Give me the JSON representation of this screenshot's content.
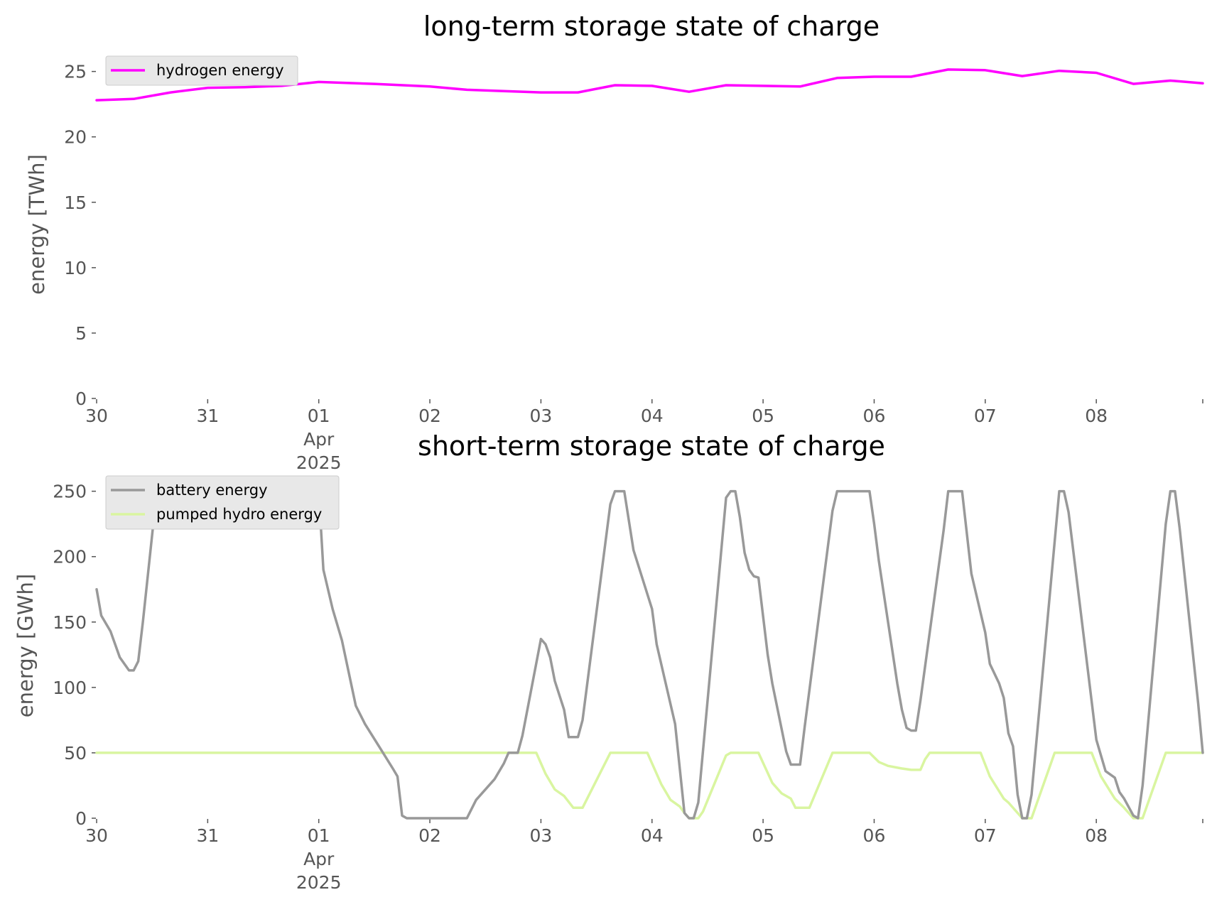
{
  "chart_data": [
    {
      "type": "line",
      "title": "long-term storage state of charge",
      "xlabel": "",
      "ylabel": "energy [TWh]",
      "ylim": [
        0,
        26.5
      ],
      "xlim": [
        "2025-03-30T00:00",
        "2025-04-08T23:00"
      ],
      "yticks": [
        0,
        5,
        10,
        15,
        20,
        25
      ],
      "xticks": [
        {
          "date": "2025-03-30",
          "label": "30",
          "sublabels": []
        },
        {
          "date": "2025-03-31",
          "label": "31",
          "sublabels": []
        },
        {
          "date": "2025-04-01",
          "label": "01",
          "sublabels": [
            "Apr",
            "2025"
          ]
        },
        {
          "date": "2025-04-02",
          "label": "02",
          "sublabels": []
        },
        {
          "date": "2025-04-03",
          "label": "03",
          "sublabels": []
        },
        {
          "date": "2025-04-04",
          "label": "04",
          "sublabels": []
        },
        {
          "date": "2025-04-05",
          "label": "05",
          "sublabels": []
        },
        {
          "date": "2025-04-06",
          "label": "06",
          "sublabels": []
        },
        {
          "date": "2025-04-07",
          "label": "07",
          "sublabels": []
        },
        {
          "date": "2025-04-08",
          "label": "08",
          "sublabels": []
        }
      ],
      "grid": false,
      "legend_position": "top-left",
      "series": [
        {
          "name": "hydrogen energy",
          "color": "#ff00ff",
          "points": [
            [
              "2025-03-30T00:00",
              22.8
            ],
            [
              "2025-03-30T08:00",
              22.9
            ],
            [
              "2025-03-30T16:00",
              23.4
            ],
            [
              "2025-03-31T00:00",
              23.75
            ],
            [
              "2025-03-31T08:00",
              23.8
            ],
            [
              "2025-03-31T16:00",
              23.9
            ],
            [
              "2025-04-01T00:00",
              24.2
            ],
            [
              "2025-04-01T12:00",
              24.05
            ],
            [
              "2025-04-02T00:00",
              23.85
            ],
            [
              "2025-04-02T08:00",
              23.6
            ],
            [
              "2025-04-02T16:00",
              23.5
            ],
            [
              "2025-04-03T00:00",
              23.4
            ],
            [
              "2025-04-03T08:00",
              23.4
            ],
            [
              "2025-04-03T16:00",
              23.95
            ],
            [
              "2025-04-04T00:00",
              23.9
            ],
            [
              "2025-04-04T08:00",
              23.45
            ],
            [
              "2025-04-04T16:00",
              23.95
            ],
            [
              "2025-04-05T00:00",
              23.9
            ],
            [
              "2025-04-05T08:00",
              23.85
            ],
            [
              "2025-04-05T16:00",
              24.5
            ],
            [
              "2025-04-06T00:00",
              24.6
            ],
            [
              "2025-04-06T08:00",
              24.6
            ],
            [
              "2025-04-06T16:00",
              25.15
            ],
            [
              "2025-04-07T00:00",
              25.1
            ],
            [
              "2025-04-07T08:00",
              24.65
            ],
            [
              "2025-04-07T16:00",
              25.05
            ],
            [
              "2025-04-08T00:00",
              24.9
            ],
            [
              "2025-04-08T08:00",
              24.05
            ],
            [
              "2025-04-08T16:00",
              24.3
            ],
            [
              "2025-04-08T23:00",
              24.1
            ]
          ]
        }
      ]
    },
    {
      "type": "line",
      "title": "short-term storage state of charge",
      "xlabel": "",
      "ylabel": "energy [GWh]",
      "ylim": [
        0,
        265
      ],
      "xlim": [
        "2025-03-30T00:00",
        "2025-04-08T23:00"
      ],
      "yticks": [
        0,
        50,
        100,
        150,
        200,
        250
      ],
      "xticks": [
        {
          "date": "2025-03-30",
          "label": "30",
          "sublabels": []
        },
        {
          "date": "2025-03-31",
          "label": "31",
          "sublabels": []
        },
        {
          "date": "2025-04-01",
          "label": "01",
          "sublabels": [
            "Apr",
            "2025"
          ]
        },
        {
          "date": "2025-04-02",
          "label": "02",
          "sublabels": []
        },
        {
          "date": "2025-04-03",
          "label": "03",
          "sublabels": []
        },
        {
          "date": "2025-04-04",
          "label": "04",
          "sublabels": []
        },
        {
          "date": "2025-04-05",
          "label": "05",
          "sublabels": []
        },
        {
          "date": "2025-04-06",
          "label": "06",
          "sublabels": []
        },
        {
          "date": "2025-04-07",
          "label": "07",
          "sublabels": []
        },
        {
          "date": "2025-04-08",
          "label": "08",
          "sublabels": []
        }
      ],
      "grid": false,
      "legend_position": "top-left",
      "series": [
        {
          "name": "battery energy",
          "color": "#999999",
          "points": [
            [
              "2025-03-30T00:00",
              175
            ],
            [
              "2025-03-30T01:00",
              155
            ],
            [
              "2025-03-30T03:00",
              143
            ],
            [
              "2025-03-30T05:00",
              123
            ],
            [
              "2025-03-30T07:00",
              113
            ],
            [
              "2025-03-30T08:00",
              113
            ],
            [
              "2025-03-30T09:00",
              120
            ],
            [
              "2025-03-30T10:00",
              150
            ],
            [
              "2025-03-30T13:00",
              250
            ],
            [
              "2025-04-01T00:00",
              250
            ],
            [
              "2025-04-01T01:00",
              190
            ],
            [
              "2025-04-01T03:00",
              160
            ],
            [
              "2025-04-01T05:00",
              136
            ],
            [
              "2025-04-01T08:00",
              86
            ],
            [
              "2025-04-01T10:00",
              72
            ],
            [
              "2025-04-01T13:00",
              55
            ],
            [
              "2025-04-01T16:00",
              38
            ],
            [
              "2025-04-01T17:00",
              32
            ],
            [
              "2025-04-01T18:00",
              2
            ],
            [
              "2025-04-01T19:00",
              0
            ],
            [
              "2025-04-02T08:00",
              0
            ],
            [
              "2025-04-02T10:00",
              14
            ],
            [
              "2025-04-02T14:00",
              30
            ],
            [
              "2025-04-02T16:00",
              42
            ],
            [
              "2025-04-02T17:00",
              50
            ],
            [
              "2025-04-02T19:00",
              50
            ],
            [
              "2025-04-02T20:00",
              63
            ],
            [
              "2025-04-03T00:00",
              137
            ],
            [
              "2025-04-03T01:00",
              133
            ],
            [
              "2025-04-03T02:00",
              123
            ],
            [
              "2025-04-03T03:00",
              105
            ],
            [
              "2025-04-03T05:00",
              83
            ],
            [
              "2025-04-03T06:00",
              62
            ],
            [
              "2025-04-03T08:00",
              62
            ],
            [
              "2025-04-03T09:00",
              75
            ],
            [
              "2025-04-03T15:00",
              240
            ],
            [
              "2025-04-03T16:00",
              250
            ],
            [
              "2025-04-03T18:00",
              250
            ],
            [
              "2025-04-03T20:00",
              205
            ],
            [
              "2025-04-04T00:00",
              160
            ],
            [
              "2025-04-04T01:00",
              133
            ],
            [
              "2025-04-04T05:00",
              72
            ],
            [
              "2025-04-04T07:00",
              4
            ],
            [
              "2025-04-04T08:00",
              0
            ],
            [
              "2025-04-04T09:00",
              0
            ],
            [
              "2025-04-04T10:00",
              12
            ],
            [
              "2025-04-04T16:00",
              245
            ],
            [
              "2025-04-04T17:00",
              250
            ],
            [
              "2025-04-04T18:00",
              250
            ],
            [
              "2025-04-04T19:00",
              230
            ],
            [
              "2025-04-04T20:00",
              203
            ],
            [
              "2025-04-04T21:00",
              190
            ],
            [
              "2025-04-04T22:00",
              185
            ],
            [
              "2025-04-04T23:00",
              184
            ],
            [
              "2025-04-05T01:00",
              125
            ],
            [
              "2025-04-05T02:00",
              103
            ],
            [
              "2025-04-05T05:00",
              51
            ],
            [
              "2025-04-05T06:00",
              41
            ],
            [
              "2025-04-05T08:00",
              41
            ],
            [
              "2025-04-05T09:00",
              70
            ],
            [
              "2025-04-05T15:00",
              235
            ],
            [
              "2025-04-05T16:00",
              250
            ],
            [
              "2025-04-05T23:00",
              250
            ],
            [
              "2025-04-06T00:00",
              225
            ],
            [
              "2025-04-06T01:00",
              197
            ],
            [
              "2025-04-06T05:00",
              103
            ],
            [
              "2025-04-06T06:00",
              83
            ],
            [
              "2025-04-06T07:00",
              69
            ],
            [
              "2025-04-06T08:00",
              67
            ],
            [
              "2025-04-06T09:00",
              67
            ],
            [
              "2025-04-06T10:00",
              90
            ],
            [
              "2025-04-06T15:00",
              220
            ],
            [
              "2025-04-06T16:00",
              250
            ],
            [
              "2025-04-06T19:00",
              250
            ],
            [
              "2025-04-06T21:00",
              187
            ],
            [
              "2025-04-07T00:00",
              142
            ],
            [
              "2025-04-07T01:00",
              118
            ],
            [
              "2025-04-07T03:00",
              103
            ],
            [
              "2025-04-07T04:00",
              92
            ],
            [
              "2025-04-07T05:00",
              65
            ],
            [
              "2025-04-07T06:00",
              55
            ],
            [
              "2025-04-07T07:00",
              18
            ],
            [
              "2025-04-07T08:00",
              0
            ],
            [
              "2025-04-07T09:00",
              0
            ],
            [
              "2025-04-07T10:00",
              18
            ],
            [
              "2025-04-07T16:00",
              250
            ],
            [
              "2025-04-07T17:00",
              250
            ],
            [
              "2025-04-07T18:00",
              234
            ],
            [
              "2025-04-08T00:00",
              60
            ],
            [
              "2025-04-08T02:00",
              36
            ],
            [
              "2025-04-08T04:00",
              31
            ],
            [
              "2025-04-08T05:00",
              20
            ],
            [
              "2025-04-08T06:00",
              15
            ],
            [
              "2025-04-08T08:00",
              2
            ],
            [
              "2025-04-08T09:00",
              0
            ],
            [
              "2025-04-08T10:00",
              25
            ],
            [
              "2025-04-08T15:00",
              225
            ],
            [
              "2025-04-08T16:00",
              250
            ],
            [
              "2025-04-08T17:00",
              250
            ],
            [
              "2025-04-08T18:00",
              222
            ],
            [
              "2025-04-08T22:00",
              88
            ],
            [
              "2025-04-08T23:00",
              50
            ]
          ]
        },
        {
          "name": "pumped hydro energy",
          "color": "#d9f5a0",
          "points": [
            [
              "2025-03-30T00:00",
              50
            ],
            [
              "2025-04-02T23:00",
              50
            ],
            [
              "2025-04-03T01:00",
              34
            ],
            [
              "2025-04-03T03:00",
              22
            ],
            [
              "2025-04-03T05:00",
              17
            ],
            [
              "2025-04-03T07:00",
              8
            ],
            [
              "2025-04-03T09:00",
              8
            ],
            [
              "2025-04-03T15:00",
              50
            ],
            [
              "2025-04-03T23:00",
              50
            ],
            [
              "2025-04-04T02:00",
              26
            ],
            [
              "2025-04-04T04:00",
              14
            ],
            [
              "2025-04-04T06:00",
              9
            ],
            [
              "2025-04-04T07:00",
              4
            ],
            [
              "2025-04-04T08:00",
              0
            ],
            [
              "2025-04-04T10:00",
              0
            ],
            [
              "2025-04-04T11:00",
              5
            ],
            [
              "2025-04-04T16:00",
              48
            ],
            [
              "2025-04-04T17:00",
              50
            ],
            [
              "2025-04-04T23:00",
              50
            ],
            [
              "2025-04-05T02:00",
              27
            ],
            [
              "2025-04-05T04:00",
              19
            ],
            [
              "2025-04-05T06:00",
              15
            ],
            [
              "2025-04-05T07:00",
              8
            ],
            [
              "2025-04-05T10:00",
              8
            ],
            [
              "2025-04-05T15:00",
              50
            ],
            [
              "2025-04-05T23:00",
              50
            ],
            [
              "2025-04-06T01:00",
              43
            ],
            [
              "2025-04-06T03:00",
              40
            ],
            [
              "2025-04-06T06:00",
              38
            ],
            [
              "2025-04-06T08:00",
              37
            ],
            [
              "2025-04-06T10:00",
              37
            ],
            [
              "2025-04-06T11:00",
              45
            ],
            [
              "2025-04-06T12:00",
              50
            ],
            [
              "2025-04-06T23:00",
              50
            ],
            [
              "2025-04-07T01:00",
              32
            ],
            [
              "2025-04-07T04:00",
              15
            ],
            [
              "2025-04-07T05:00",
              12
            ],
            [
              "2025-04-07T07:00",
              4
            ],
            [
              "2025-04-07T08:00",
              0
            ],
            [
              "2025-04-07T10:00",
              0
            ],
            [
              "2025-04-07T15:00",
              50
            ],
            [
              "2025-04-07T23:00",
              50
            ],
            [
              "2025-04-08T01:00",
              32
            ],
            [
              "2025-04-08T04:00",
              15
            ],
            [
              "2025-04-08T06:00",
              8
            ],
            [
              "2025-04-08T08:00",
              0
            ],
            [
              "2025-04-08T10:00",
              0
            ],
            [
              "2025-04-08T15:00",
              50
            ],
            [
              "2025-04-08T23:00",
              50
            ]
          ]
        }
      ]
    }
  ]
}
